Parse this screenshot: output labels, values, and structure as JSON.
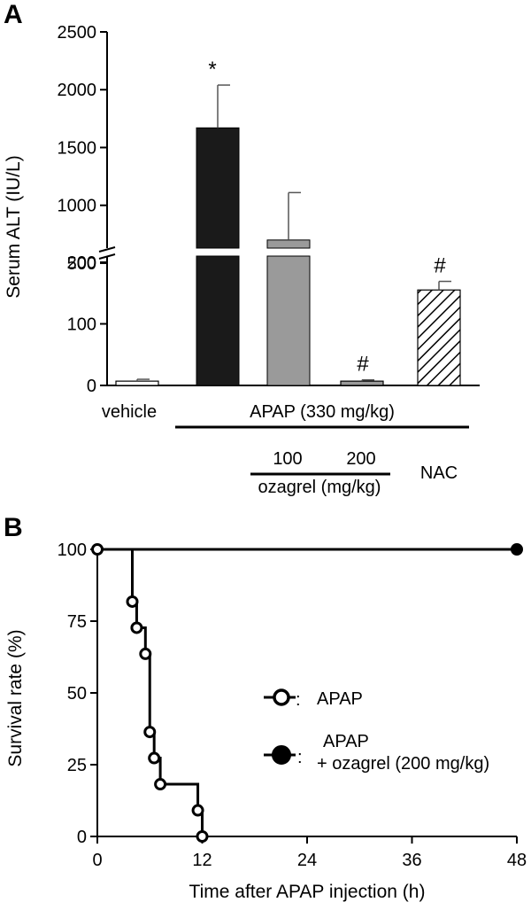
{
  "panel_a": {
    "label": "A",
    "ylabel": "Serum ALT (IU/L)",
    "yticks_upper": [
      "2500",
      "2000",
      "1500",
      "1000",
      "500"
    ],
    "yticks_lower": [
      "200",
      "100",
      "0"
    ],
    "group_labels": {
      "vehicle": "vehicle",
      "apap": "APAP (330 mg/kg)",
      "dose_100": "100",
      "dose_200": "200",
      "ozagrel": "ozagrel (mg/kg)",
      "nac": "NAC"
    },
    "bar_fill_colors": [
      "#ffffff",
      "#1a1a1a",
      "#9a9a9a",
      "#9a9a9a",
      "hatched"
    ]
  },
  "panel_b": {
    "label": "B",
    "ylabel": "Survival rate (%)",
    "xlabel": "Time after APAP injection (h)",
    "xticks": [
      "0",
      "12",
      "24",
      "36",
      "48"
    ],
    "yticks": [
      "100",
      "75",
      "50",
      "25",
      "0"
    ],
    "legend_apap": "APAP",
    "legend_ozagrel_line1": "APAP",
    "legend_ozagrel_line2": "+ ozagrel (200 mg/kg)",
    "legend_separator": ":"
  },
  "chart_data": [
    {
      "type": "bar",
      "title": "",
      "ylabel": "Serum ALT (IU/L)",
      "categories": [
        "vehicle",
        "APAP",
        "APAP + ozagrel 100",
        "APAP + ozagrel 200",
        "APAP + NAC"
      ],
      "values": [
        7,
        1670,
        700,
        7,
        155
      ],
      "errors": [
        3,
        370,
        410,
        2,
        14
      ],
      "annotations": [
        "",
        "*",
        "",
        "#",
        "#"
      ],
      "y_axis_break": {
        "lower_range": [
          0,
          200
        ],
        "upper_range": [
          400,
          2500
        ]
      },
      "ylim": [
        0,
        2500
      ]
    },
    {
      "type": "line",
      "title": "",
      "xlabel": "Time after APAP injection (h)",
      "ylabel": "Survival rate (%)",
      "xlim": [
        0,
        48
      ],
      "ylim": [
        0,
        100
      ],
      "series": [
        {
          "name": "APAP",
          "marker": "open-circle",
          "step": true,
          "x": [
            0,
            4,
            4.5,
            5.5,
            6,
            6.5,
            7.2,
            11.5,
            12
          ],
          "y": [
            100,
            81.8,
            72.7,
            63.6,
            36.4,
            27.3,
            18.2,
            9.1,
            0
          ]
        },
        {
          "name": "APAP + ozagrel (200 mg/kg)",
          "marker": "filled-circle",
          "step": true,
          "x": [
            0,
            48
          ],
          "y": [
            100,
            100
          ]
        }
      ]
    }
  ]
}
